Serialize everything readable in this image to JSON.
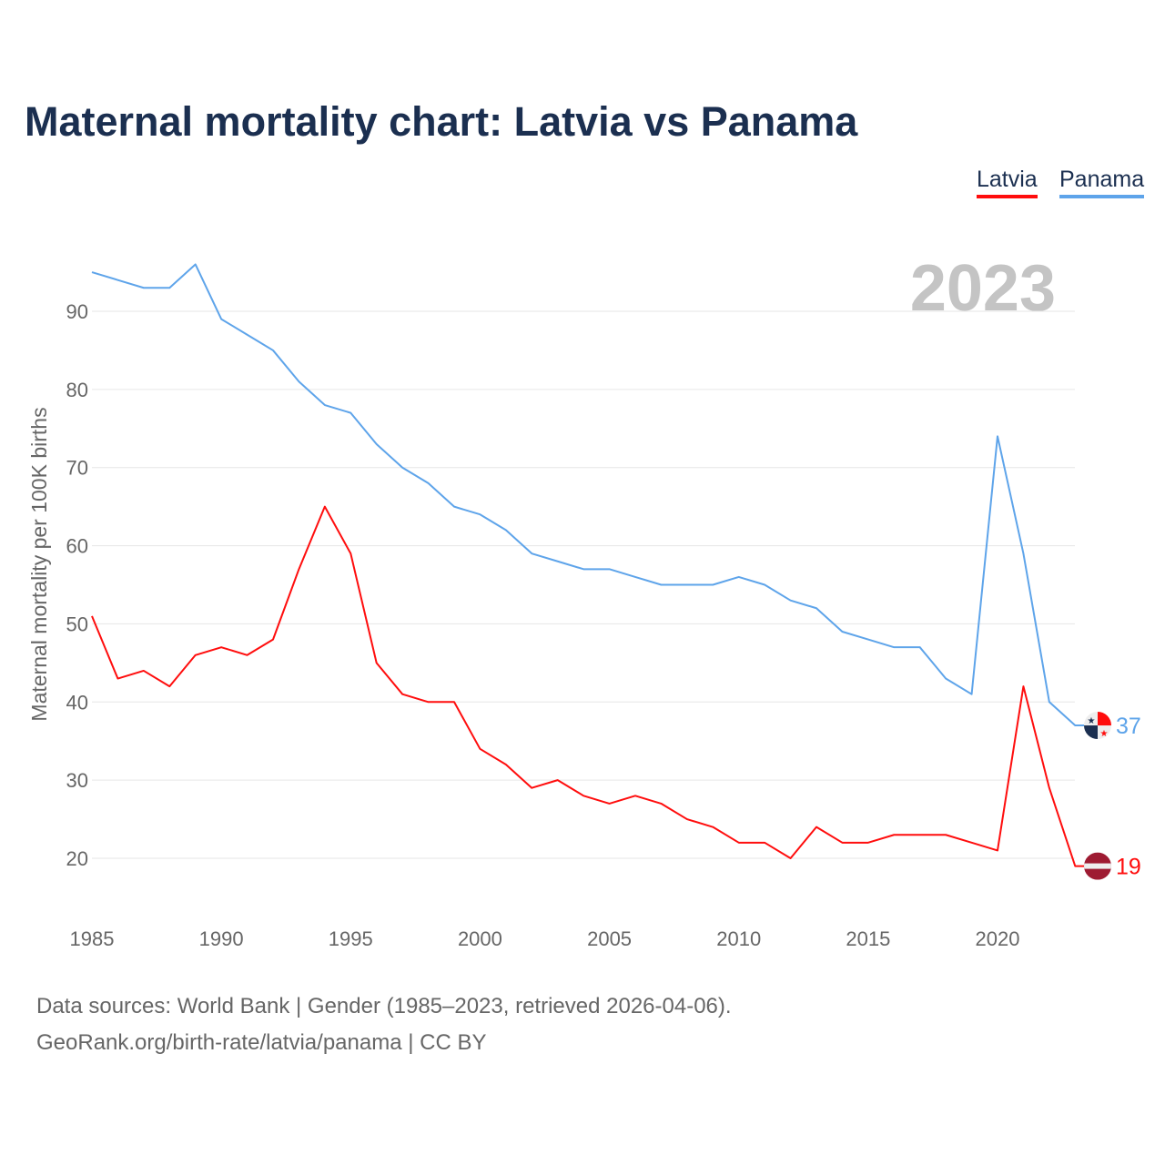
{
  "chart_data": {
    "type": "line",
    "title": "Maternal mortality chart: Latvia vs Panama",
    "ylabel": "Maternal mortality per 100K births",
    "xlabel": "",
    "year_label": "2023",
    "x": [
      1985,
      1986,
      1987,
      1988,
      1989,
      1990,
      1991,
      1992,
      1993,
      1994,
      1995,
      1996,
      1997,
      1998,
      1999,
      2000,
      2001,
      2002,
      2003,
      2004,
      2005,
      2006,
      2007,
      2008,
      2009,
      2010,
      2011,
      2012,
      2013,
      2014,
      2015,
      2016,
      2017,
      2018,
      2019,
      2020,
      2021,
      2022,
      2023
    ],
    "xticks": [
      "1985",
      "1990",
      "1995",
      "2000",
      "2005",
      "2010",
      "2015",
      "2020"
    ],
    "yticks": [
      "20",
      "30",
      "40",
      "50",
      "60",
      "70",
      "80",
      "90"
    ],
    "xlim": [
      1985,
      2023
    ],
    "ylim": [
      14,
      100
    ],
    "grid": true,
    "legend_position": "top-right",
    "series": [
      {
        "name": "Latvia",
        "color": "#ff0d0d",
        "end_label": "19",
        "values": [
          51,
          43,
          44,
          42,
          46,
          47,
          46,
          48,
          57,
          65,
          59,
          45,
          41,
          40,
          40,
          34,
          32,
          29,
          30,
          28,
          27,
          28,
          27,
          25,
          24,
          22,
          22,
          20,
          24,
          22,
          22,
          23,
          23,
          23,
          22,
          21,
          42,
          29,
          19
        ]
      },
      {
        "name": "Panama",
        "color": "#5ea4ea",
        "end_label": "37",
        "values": [
          95,
          94,
          93,
          93,
          96,
          89,
          87,
          85,
          81,
          78,
          77,
          73,
          70,
          68,
          65,
          64,
          62,
          59,
          58,
          57,
          57,
          56,
          55,
          55,
          55,
          56,
          55,
          53,
          52,
          49,
          48,
          47,
          47,
          43,
          41,
          74,
          59,
          40,
          37
        ]
      }
    ]
  },
  "footer": {
    "line1": "Data sources: World Bank | Gender (1985–2023, retrieved 2026-04-06).",
    "line2": "GeoRank.org/birth-rate/latvia/panama | CC BY"
  }
}
